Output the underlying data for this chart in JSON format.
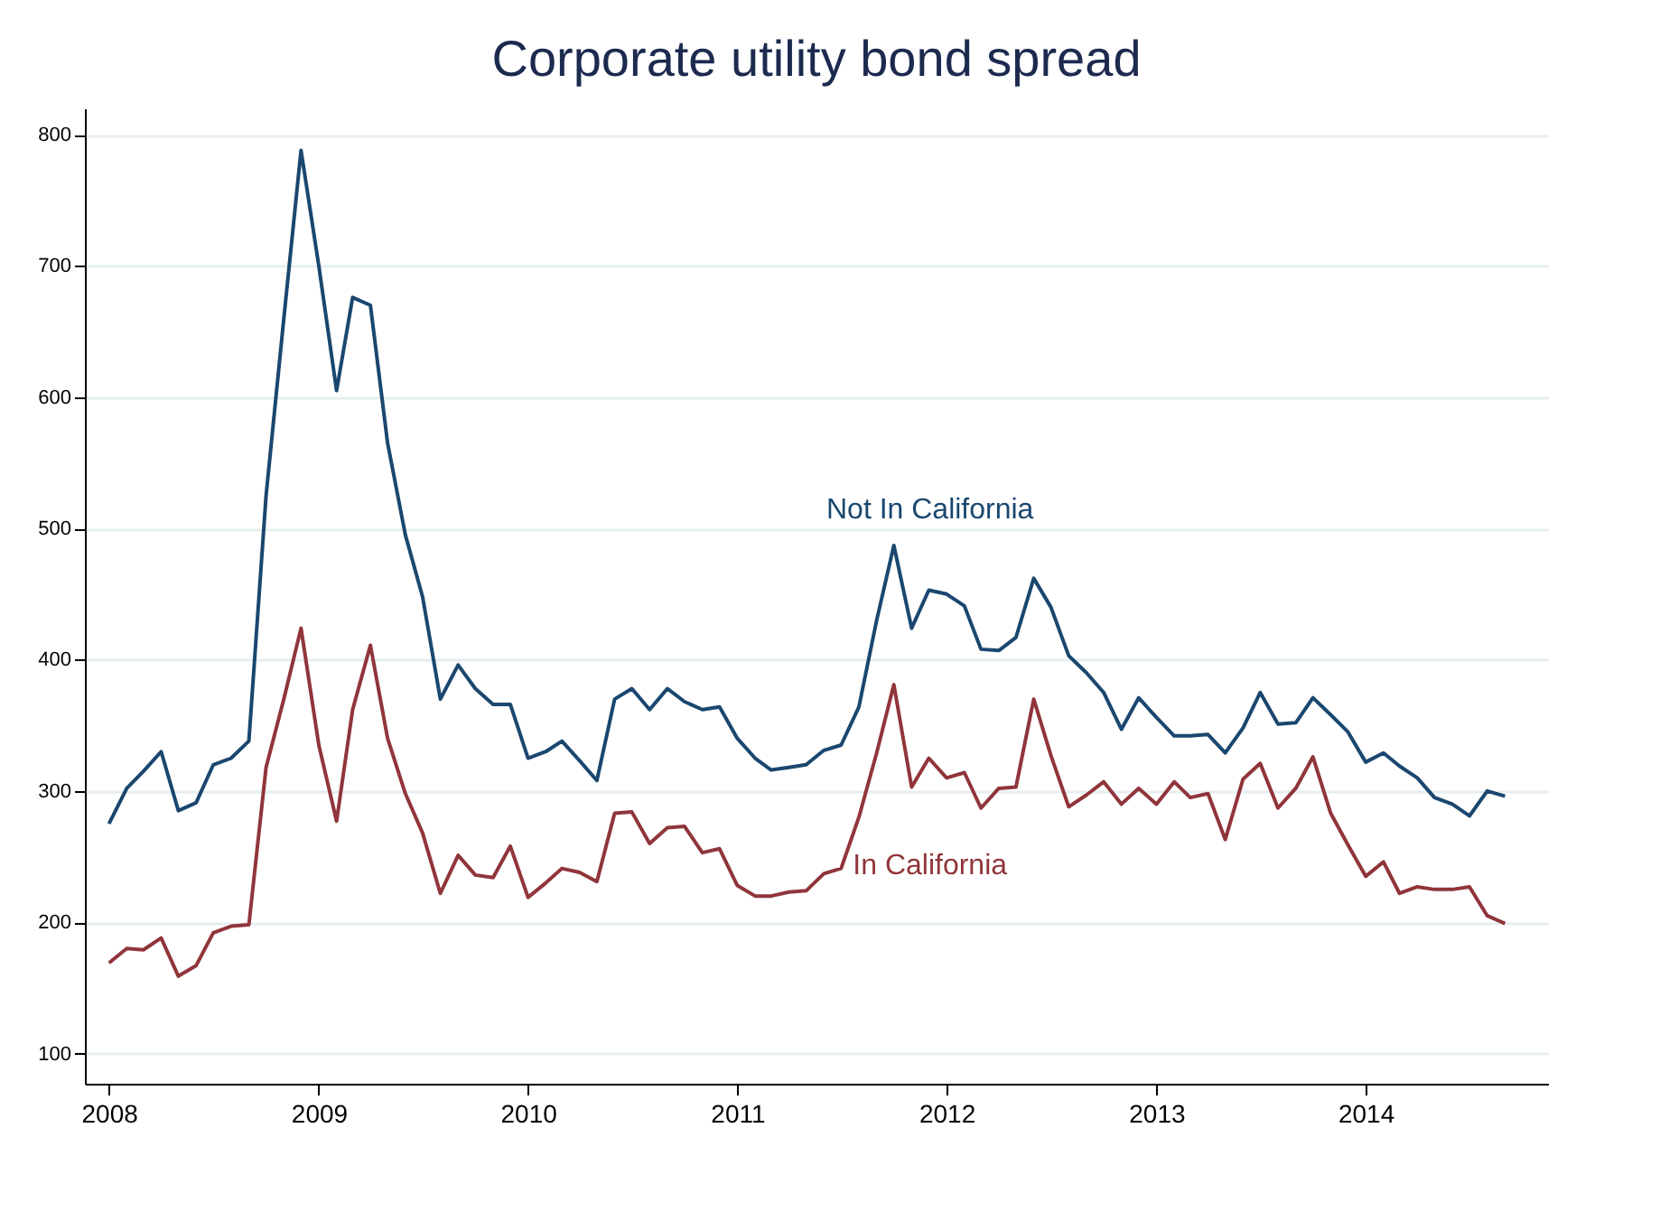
{
  "chart_data": {
    "type": "line",
    "title": "Corporate utility bond spread",
    "x": [
      "2008-01",
      "2008-02",
      "2008-03",
      "2008-04",
      "2008-05",
      "2008-06",
      "2008-07",
      "2008-08",
      "2008-09",
      "2008-10",
      "2008-11",
      "2008-12",
      "2009-01",
      "2009-02",
      "2009-03",
      "2009-04",
      "2009-05",
      "2009-06",
      "2009-07",
      "2009-08",
      "2009-09",
      "2009-10",
      "2009-11",
      "2009-12",
      "2010-01",
      "2010-02",
      "2010-03",
      "2010-04",
      "2010-05",
      "2010-06",
      "2010-07",
      "2010-08",
      "2010-09",
      "2010-10",
      "2010-11",
      "2010-12",
      "2011-01",
      "2011-02",
      "2011-03",
      "2011-04",
      "2011-05",
      "2011-06",
      "2011-07",
      "2011-08",
      "2011-09",
      "2011-10",
      "2011-11",
      "2011-12",
      "2012-01",
      "2012-02",
      "2012-03",
      "2012-04",
      "2012-05",
      "2012-06",
      "2012-07",
      "2012-08",
      "2012-09",
      "2012-10",
      "2012-11",
      "2012-12",
      "2013-01",
      "2013-02",
      "2013-03",
      "2013-04",
      "2013-05",
      "2013-06",
      "2013-07",
      "2013-08",
      "2013-09",
      "2013-10",
      "2013-11",
      "2013-12",
      "2014-01",
      "2014-02",
      "2014-03",
      "2014-04",
      "2014-05",
      "2014-06",
      "2014-07",
      "2014-08",
      "2014-09"
    ],
    "series": [
      {
        "name": "Not In California",
        "color": "#1a476f",
        "values": [
          275,
          302,
          315,
          330,
          285,
          291,
          320,
          325,
          338,
          525,
          660,
          788,
          700,
          605,
          676,
          670,
          565,
          495,
          448,
          370,
          396,
          378,
          366,
          366,
          325,
          330,
          338,
          323,
          308,
          370,
          378,
          362,
          378,
          368,
          362,
          364,
          340,
          325,
          316,
          318,
          320,
          331,
          335,
          364,
          430,
          487,
          424,
          453,
          450,
          441,
          408,
          407,
          417,
          462,
          440,
          403,
          390,
          375,
          347,
          371,
          356,
          342,
          342,
          343,
          329,
          348,
          375,
          351,
          352,
          371,
          358,
          345,
          322,
          329,
          319,
          310,
          295,
          290,
          281,
          300,
          296
        ]
      },
      {
        "name": "In California",
        "color": "#90353b",
        "values": [
          169,
          180,
          179,
          188,
          159,
          167,
          192,
          197,
          198,
          318,
          370,
          424,
          335,
          277,
          362,
          411,
          340,
          298,
          268,
          222,
          251,
          236,
          234,
          258,
          219,
          230,
          241,
          238,
          231,
          283,
          284,
          260,
          272,
          273,
          253,
          256,
          228,
          220,
          220,
          223,
          224,
          237,
          241,
          280,
          329,
          381,
          303,
          325,
          310,
          314,
          287,
          302,
          303,
          370,
          327,
          288,
          297,
          307,
          290,
          302,
          290,
          307,
          295,
          298,
          263,
          309,
          321,
          287,
          302,
          326,
          283,
          259,
          235,
          246,
          222,
          227,
          225,
          225,
          227,
          205,
          199
        ]
      }
    ],
    "xlim": [
      "2007-11-20",
      "2014-11-15"
    ],
    "xticks": [
      "2008",
      "2009",
      "2010",
      "2011",
      "2012",
      "2013",
      "2014"
    ],
    "ylim": [
      77,
      820
    ],
    "yticks": [
      100,
      200,
      300,
      400,
      500,
      600,
      700,
      800
    ],
    "grid": "y",
    "legend": false,
    "marker": "none",
    "line_style": "solid"
  }
}
